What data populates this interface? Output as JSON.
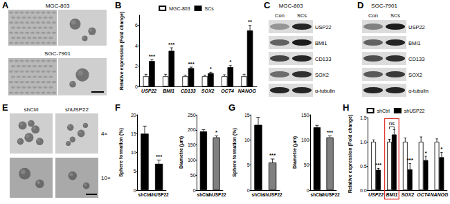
{
  "micrographs": [
    {
      "label": "A",
      "rows": [
        "MGC-803",
        "SGC-7901"
      ]
    },
    {
      "label": "E",
      "columns": [
        "shCtrl",
        "shUSP22"
      ],
      "rows": [
        "4×",
        "10×"
      ]
    }
  ],
  "blots": [
    {
      "label": "C",
      "title": "MGC-803",
      "columns": [
        "Con",
        "SCs"
      ],
      "rows": [
        "USP22",
        "BMI1",
        "CD133",
        "SOX2",
        "α-tubulin"
      ]
    },
    {
      "label": "D",
      "title": "SGC-7901",
      "columns": [
        "Con",
        "SCs"
      ],
      "rows": [
        "USP22",
        "BMI1",
        "CD133",
        "SOX2",
        "α-tubulin"
      ]
    }
  ],
  "chart_data": [
    {
      "panel": "B",
      "type": "bar",
      "categories": [
        "USP22",
        "BMI1",
        "CD133",
        "SOX2",
        "OCT4",
        "NANOG"
      ],
      "series": [
        {
          "name": "MGC-803",
          "color": "#ffffff",
          "values": [
            1,
            1,
            1,
            1,
            1,
            1
          ],
          "errors": [
            0.2,
            0.2,
            0.1,
            0.1,
            0.15,
            0.2
          ]
        },
        {
          "name": "SCs",
          "color": "#000000",
          "values": [
            2.5,
            3.5,
            1.8,
            1.3,
            1.9,
            5.5
          ],
          "errors": [
            0.15,
            0.3,
            0.1,
            0.1,
            0.15,
            0.5
          ]
        }
      ],
      "significance": [
        "***",
        "***",
        "***",
        "*",
        "*",
        "**"
      ],
      "y_label": "Relative expression (Fold change)",
      "ylim": [
        0,
        7
      ],
      "yticks": [
        0,
        2,
        4,
        6
      ],
      "legend": "top",
      "grid": false
    },
    {
      "panel": "F",
      "type": "bar",
      "categories": [
        "shCtrl",
        "shUSP22"
      ],
      "values": [
        15,
        7
      ],
      "errors": [
        2,
        1
      ],
      "colors": [
        "#000000",
        "#000000"
      ],
      "significance": "***",
      "y_label": "Sphere formation (%)",
      "ylim": [
        0,
        20
      ],
      "yticks": [
        0,
        5,
        10,
        15,
        20
      ],
      "grid": false
    },
    {
      "type": "bar",
      "categories": [
        "shCtrl",
        "shUSP22"
      ],
      "values": [
        195,
        175
      ],
      "errors": [
        6,
        5
      ],
      "colors": [
        "#000000",
        "#808080"
      ],
      "significance": "*",
      "y_label": "Diametre (μm)",
      "ylim": [
        0,
        250
      ],
      "yticks": [
        0,
        50,
        100,
        150,
        200,
        250
      ],
      "grid": false
    },
    {
      "panel": "G",
      "type": "bar",
      "categories": [
        "shCtrl",
        "shUSP22"
      ],
      "values": [
        13,
        5.5
      ],
      "errors": [
        1.5,
        0.7
      ],
      "colors": [
        "#000000",
        "#808080"
      ],
      "significance": "***",
      "y_label": "Sphere formation (%)",
      "ylim": [
        0,
        15
      ],
      "yticks": [
        0,
        5,
        10,
        15
      ],
      "grid": false
    },
    {
      "type": "bar",
      "categories": [
        "shCtrl",
        "shUSP22"
      ],
      "values": [
        125,
        105
      ],
      "errors": [
        4,
        3
      ],
      "colors": [
        "#000000",
        "#808080"
      ],
      "significance": "***",
      "y_label": "Diametre (μm)",
      "ylim": [
        0,
        150
      ],
      "yticks": [
        0,
        50,
        100,
        150
      ],
      "grid": false
    },
    {
      "panel": "H",
      "type": "bar",
      "categories": [
        "USP22",
        "BMI1",
        "SOX2",
        "OCT4",
        "NANOG"
      ],
      "series": [
        {
          "name": "shCtrl",
          "color": "#ffffff",
          "values": [
            1,
            1,
            1,
            1,
            1
          ],
          "errors": [
            0.04,
            0.05,
            0.08,
            0.1,
            0.06
          ]
        },
        {
          "name": "shUSP22",
          "color": "#000000",
          "values": [
            0.42,
            1.15,
            0.43,
            0.62,
            0.68
          ],
          "errors": [
            0.03,
            0.1,
            0.12,
            0.08,
            0.1
          ]
        }
      ],
      "significance": [
        "***",
        "ns",
        "***",
        "*",
        "*"
      ],
      "y_label": "Relative expression (Fold change)",
      "ylim": [
        0,
        1.5
      ],
      "yticks": [
        {
          "value": 0,
          "label": "0.0"
        },
        {
          "value": 0.5,
          "label": "0.5"
        },
        {
          "value": 1,
          "label": "1.0"
        },
        {
          "value": 1.5,
          "label": "1.5"
        }
      ],
      "legend": "top",
      "grid": false
    }
  ]
}
